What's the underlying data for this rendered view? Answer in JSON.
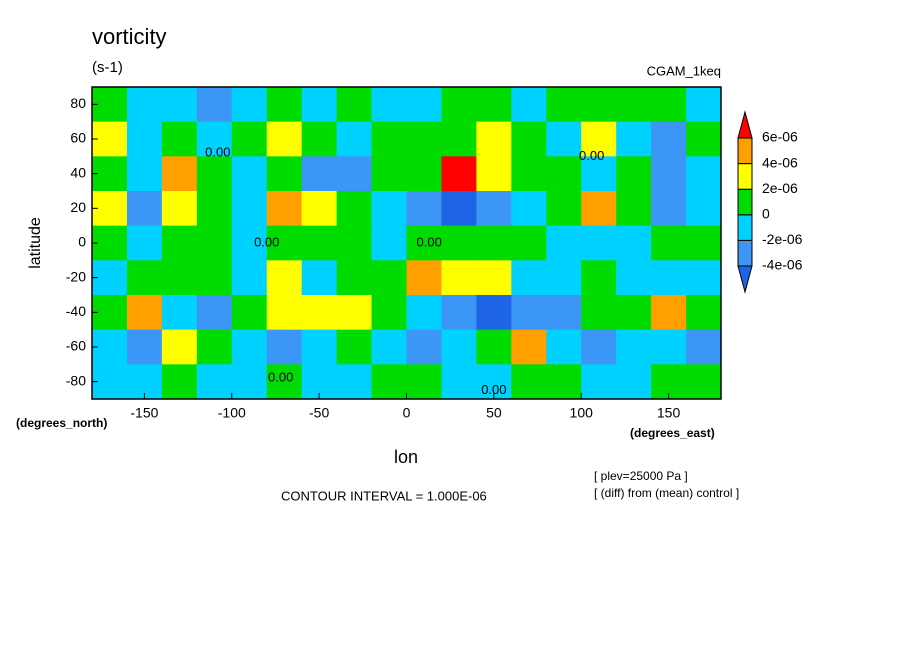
{
  "chart_data": {
    "type": "contour",
    "title": "vorticity",
    "subtitle": "(s-1)",
    "run_label": "CGAM_1keq",
    "xlabel": "lon",
    "ylabel": "latitude",
    "ylabel_units": "(degrees_north)",
    "xlabel_units": "(degrees_east)",
    "footer": "CONTOUR INTERVAL = 1.000E-06",
    "notes": [
      "[ plev=25000 Pa ]",
      "[ (diff) from (mean) control ]"
    ],
    "xlim": [
      -180,
      180
    ],
    "ylim": [
      -90,
      90
    ],
    "xticks": [
      -150,
      -100,
      -50,
      0,
      50,
      100,
      150
    ],
    "yticks": [
      -80,
      -60,
      -40,
      -20,
      0,
      20,
      40,
      60,
      80
    ],
    "x": [
      -170,
      -150,
      -130,
      -110,
      -90,
      -70,
      -50,
      -30,
      -10,
      10,
      30,
      50,
      70,
      90,
      110,
      130,
      150,
      170
    ],
    "y": [
      80,
      60,
      40,
      20,
      0,
      -20,
      -40,
      -60,
      -80
    ],
    "z": [
      [
        5e-07,
        -1e-06,
        -1e-06,
        -2.5e-06,
        -1e-06,
        1e-06,
        -1e-06,
        5e-07,
        -1e-06,
        -1e-06,
        1e-06,
        1e-06,
        -1e-06,
        1e-06,
        5e-07,
        1e-06,
        1e-06,
        -1e-06
      ],
      [
        3e-06,
        -1e-06,
        1e-06,
        -1e-06,
        1e-06,
        3e-06,
        1e-06,
        -1e-06,
        1e-06,
        1e-06,
        1e-06,
        3e-06,
        1e-06,
        -1e-06,
        3e-06,
        -1e-06,
        -2.5e-06,
        1e-06
      ],
      [
        1e-06,
        -1e-06,
        4.5e-06,
        1e-06,
        -1e-06,
        1e-06,
        -2.5e-06,
        -2.5e-06,
        1e-06,
        1e-06,
        6.5e-06,
        3e-06,
        1e-06,
        1e-06,
        -1e-06,
        1e-06,
        -2.5e-06,
        -1e-06
      ],
      [
        3e-06,
        -2.5e-06,
        3e-06,
        1e-06,
        -1e-06,
        4.5e-06,
        3e-06,
        1e-06,
        -1e-06,
        -2.5e-06,
        -4.5e-06,
        -2.5e-06,
        -1e-06,
        1e-06,
        4.5e-06,
        1e-06,
        -2.5e-06,
        -1e-06
      ],
      [
        1e-06,
        -1e-06,
        1e-06,
        1e-06,
        -1e-06,
        1e-06,
        1e-06,
        1e-06,
        -1e-06,
        1e-06,
        1e-06,
        1e-06,
        1e-06,
        -1e-06,
        -1e-06,
        -1e-06,
        1e-06,
        1e-06
      ],
      [
        -1e-06,
        1e-06,
        1e-06,
        1e-06,
        -1e-06,
        3e-06,
        -1e-06,
        1e-06,
        1e-06,
        5e-06,
        3e-06,
        3e-06,
        -1e-06,
        -1e-06,
        1e-06,
        -1e-06,
        -1e-06,
        -1e-06
      ],
      [
        1e-06,
        4.5e-06,
        -1e-06,
        -2.5e-06,
        1e-06,
        3e-06,
        3e-06,
        3e-06,
        1e-06,
        -1e-06,
        -2.5e-06,
        -4.5e-06,
        -2.5e-06,
        -2.5e-06,
        1e-06,
        1e-06,
        4.5e-06,
        1e-06
      ],
      [
        -1e-06,
        -2.5e-06,
        3e-06,
        1e-06,
        -1e-06,
        -2.5e-06,
        -1e-06,
        1e-06,
        -1e-06,
        -2.5e-06,
        -1e-06,
        1e-06,
        4.5e-06,
        -1e-06,
        -2.5e-06,
        -1e-06,
        -1e-06,
        -2.5e-06
      ],
      [
        -1e-06,
        -1e-06,
        1e-06,
        -1e-06,
        -1e-06,
        1e-06,
        -1e-06,
        -1e-06,
        1e-06,
        1e-06,
        -1e-06,
        -1e-06,
        1e-06,
        1e-06,
        -1e-06,
        -1e-06,
        1e-06,
        1e-06
      ]
    ],
    "levels": [
      {
        "value": -4e-06,
        "label": "-4e-06"
      },
      {
        "value": -2e-06,
        "label": "-2e-06"
      },
      0,
      {
        "value": 2e-06,
        "label": "2e-06"
      },
      {
        "value": 4e-06,
        "label": "4e-06"
      },
      {
        "value": 6e-06,
        "label": "6e-06"
      }
    ],
    "colors": [
      "#1e64e6",
      "#3c96f5",
      "#00d2ff",
      "#00dc00",
      "#ffff00",
      "#ffa000",
      "#ff0000"
    ],
    "annotations": [
      {
        "text": "0.00",
        "lon": -80,
        "lat": 0
      },
      {
        "text": "0.00",
        "lon": 13,
        "lat": 0
      },
      {
        "text": "0.00",
        "lon": -72,
        "lat": -78
      },
      {
        "text": "0.00",
        "lon": 50,
        "lat": -85
      },
      {
        "text": "0.00",
        "lon": -108,
        "lat": 52
      },
      {
        "text": "0.00",
        "lon": 106,
        "lat": 50
      }
    ]
  }
}
